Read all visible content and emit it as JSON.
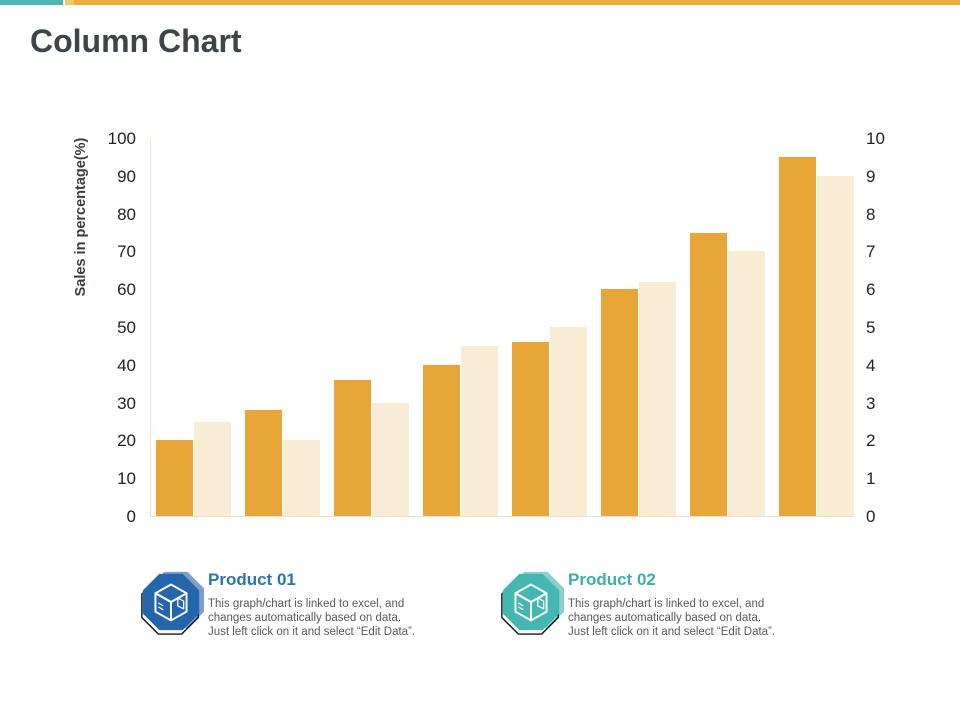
{
  "title": "Column Chart",
  "accent_bar": {
    "teal_color": "#4BB5B0",
    "gold_light_color": "#F2C765",
    "gold_color": "#EBAC3C"
  },
  "colors": {
    "title_text": "#3F4448",
    "axis_line": "#F0E2C4",
    "tick_label": "#222222",
    "description_text": "#58595B"
  },
  "chart_data": {
    "type": "bar",
    "title": "",
    "xlabel": "",
    "ylabel": "Sales in percentage(%)",
    "grid": false,
    "num_groups": 8,
    "x_axis_labels": [],
    "left_axis": {
      "ticks": [
        100,
        90,
        80,
        70,
        60,
        50,
        40,
        30,
        20,
        10,
        0
      ],
      "range": [
        0,
        100
      ]
    },
    "right_axis": {
      "ticks": [
        10,
        9,
        8,
        7,
        6,
        5,
        4,
        3,
        2,
        1,
        0
      ],
      "range": [
        0,
        10
      ]
    },
    "series": [
      {
        "name": "Product 01",
        "axis": "left",
        "color": "#E9A638",
        "values": [
          20,
          28,
          36,
          40,
          46,
          60,
          75,
          95
        ]
      },
      {
        "name": "Product 02",
        "axis": "right",
        "color": "#F8ECD4",
        "values": [
          2.5,
          2,
          3,
          4.5,
          5,
          6.2,
          7,
          9
        ]
      }
    ]
  },
  "legend": {
    "items": [
      {
        "title": "Product 01",
        "title_color": "#2E73B1",
        "icon": "cube-octagon-icon",
        "icon_color": "#2565AC",
        "icon_shadow_color": "#7C9EC9",
        "description_lines": [
          "This graph/chart is linked to excel, and",
          "changes automatically based on data.",
          "Just left click on it and select “Edit Data”."
        ]
      },
      {
        "title": "Product 02",
        "title_color": "#3BAFA9",
        "icon": "cube-octagon-icon",
        "icon_color": "#45B7B1",
        "icon_shadow_color": "#8CCFC9",
        "description_lines": [
          "This graph/chart is linked to excel, and",
          "changes automatically based on data.",
          "Just left click on it and select “Edit Data”."
        ]
      }
    ]
  }
}
